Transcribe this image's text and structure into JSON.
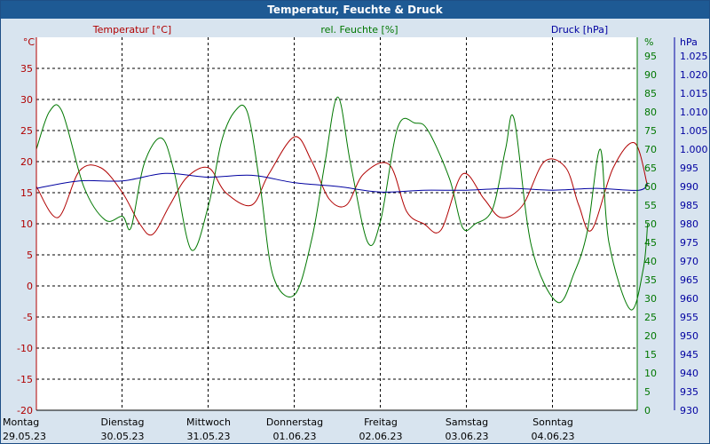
{
  "window": {
    "title": "Temperatur, Feuchte & Druck"
  },
  "colors": {
    "temperature": "#b00000",
    "humidity": "#007700",
    "pressure": "#0000a0",
    "grid": "#000000",
    "axis_text": "#000000"
  },
  "chart_data": {
    "type": "line",
    "title": "Temperatur, Feuchte & Druck",
    "axes": {
      "temperature": {
        "label": "Temperatur [°C]",
        "unit": "°C",
        "ylim": [
          -20,
          40
        ],
        "ticks": [
          "-20",
          "-15",
          "-10",
          "-5",
          "0",
          "5",
          "10",
          "15",
          "20",
          "25",
          "30",
          "35"
        ]
      },
      "humidity": {
        "label": "rel. Feuchte [%]",
        "unit": "%",
        "ylim": [
          0,
          100
        ],
        "ticks": [
          "0",
          "5",
          "10",
          "15",
          "20",
          "25",
          "30",
          "35",
          "40",
          "45",
          "50",
          "55",
          "60",
          "65",
          "70",
          "75",
          "80",
          "85",
          "90",
          "95"
        ]
      },
      "pressure": {
        "label": "Druck [hPa]",
        "unit": "hPa",
        "ylim": [
          930,
          1030
        ],
        "ticks": [
          "930",
          "935",
          "940",
          "945",
          "950",
          "955",
          "960",
          "965",
          "970",
          "975",
          "980",
          "985",
          "990",
          "995",
          "1.000",
          "1.005",
          "1.010",
          "1.015",
          "1.020",
          "1.025"
        ]
      }
    },
    "x_categories": [
      {
        "day": "Montag",
        "date": "29.05.23"
      },
      {
        "day": "Dienstag",
        "date": "30.05.23"
      },
      {
        "day": "Mittwoch",
        "date": "31.05.23"
      },
      {
        "day": "Donnerstag",
        "date": "01.06.23"
      },
      {
        "day": "Freitag",
        "date": "02.06.23"
      },
      {
        "day": "Samstag",
        "date": "03.06.23"
      },
      {
        "day": "Sonntag",
        "date": "04.06.23"
      }
    ],
    "x_unit": "days since Montag 29.05.23 00:00",
    "xlim": [
      0,
      7.1
    ],
    "grid": true,
    "series": [
      {
        "name": "Temperatur [°C]",
        "axis": "temperature",
        "color": "#b00000",
        "points": [
          [
            0,
            16
          ],
          [
            0.25,
            11
          ],
          [
            0.5,
            18.5
          ],
          [
            0.75,
            19
          ],
          [
            1,
            15
          ],
          [
            1.2,
            10
          ],
          [
            1.35,
            8.3
          ],
          [
            1.55,
            13
          ],
          [
            1.75,
            17.5
          ],
          [
            2,
            19
          ],
          [
            2.2,
            15
          ],
          [
            2.5,
            13
          ],
          [
            2.7,
            18
          ],
          [
            3,
            24
          ],
          [
            3.2,
            20
          ],
          [
            3.4,
            14
          ],
          [
            3.6,
            13
          ],
          [
            3.8,
            18
          ],
          [
            4.1,
            19.5
          ],
          [
            4.3,
            12
          ],
          [
            4.5,
            10
          ],
          [
            4.7,
            9
          ],
          [
            4.95,
            18
          ],
          [
            5.2,
            14
          ],
          [
            5.4,
            11
          ],
          [
            5.65,
            13
          ],
          [
            5.9,
            20
          ],
          [
            6.15,
            19
          ],
          [
            6.3,
            13
          ],
          [
            6.45,
            9
          ],
          [
            6.7,
            19
          ],
          [
            6.95,
            23
          ],
          [
            7.1,
            16
          ]
        ]
      },
      {
        "name": "rel. Feuchte [%]",
        "axis": "humidity",
        "color": "#007700",
        "points": [
          [
            0,
            70
          ],
          [
            0.15,
            80
          ],
          [
            0.3,
            80
          ],
          [
            0.55,
            60
          ],
          [
            0.8,
            51
          ],
          [
            1,
            52
          ],
          [
            1.1,
            49
          ],
          [
            1.25,
            66
          ],
          [
            1.45,
            73
          ],
          [
            1.6,
            64
          ],
          [
            1.8,
            43
          ],
          [
            2,
            55
          ],
          [
            2.15,
            72
          ],
          [
            2.3,
            80
          ],
          [
            2.45,
            80
          ],
          [
            2.6,
            60
          ],
          [
            2.75,
            36
          ],
          [
            3,
            31
          ],
          [
            3.2,
            46
          ],
          [
            3.35,
            66
          ],
          [
            3.5,
            84
          ],
          [
            3.65,
            66
          ],
          [
            3.85,
            45
          ],
          [
            4,
            51
          ],
          [
            4.2,
            76
          ],
          [
            4.4,
            77
          ],
          [
            4.55,
            75
          ],
          [
            4.8,
            62
          ],
          [
            4.95,
            49
          ],
          [
            5.1,
            50
          ],
          [
            5.3,
            54
          ],
          [
            5.45,
            70
          ],
          [
            5.55,
            78
          ],
          [
            5.75,
            44
          ],
          [
            6.05,
            29
          ],
          [
            6.25,
            37
          ],
          [
            6.4,
            48
          ],
          [
            6.55,
            70
          ],
          [
            6.65,
            45
          ],
          [
            6.9,
            27
          ],
          [
            7.05,
            38
          ],
          [
            7.1,
            50
          ]
        ]
      },
      {
        "name": "Druck [hPa]",
        "axis": "pressure",
        "color": "#0000a0",
        "points": [
          [
            0,
            989.5
          ],
          [
            0.5,
            991.5
          ],
          [
            1,
            991.5
          ],
          [
            1.5,
            993.5
          ],
          [
            2,
            992.5
          ],
          [
            2.5,
            993
          ],
          [
            3,
            991
          ],
          [
            3.5,
            990
          ],
          [
            4,
            988.5
          ],
          [
            4.5,
            989
          ],
          [
            5,
            989
          ],
          [
            5.5,
            989.5
          ],
          [
            6,
            989
          ],
          [
            6.5,
            989.5
          ],
          [
            7,
            989
          ],
          [
            7.1,
            991
          ]
        ]
      }
    ]
  }
}
